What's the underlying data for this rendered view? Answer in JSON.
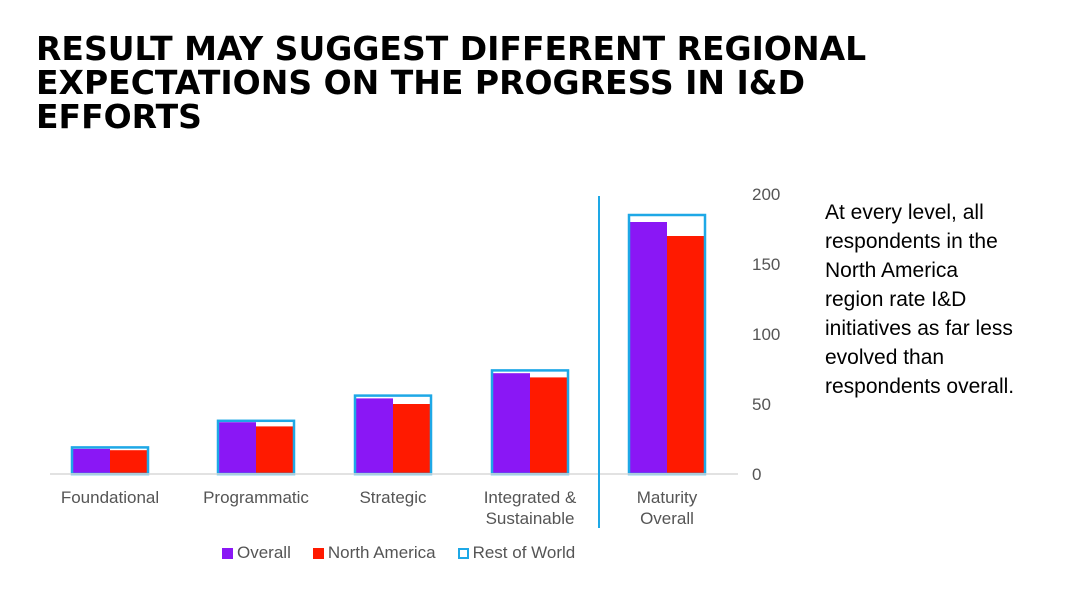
{
  "title_lines": [
    "RESULT MAY SUGGEST DIFFERENT REGIONAL",
    "EXPECTATIONS ON THE PROGRESS IN  I&D",
    "EFFORTS"
  ],
  "side_text_lines": [
    "At every level, all",
    "respondents in the",
    "North America",
    "region rate I&D",
    "initiatives as far less",
    "evolved than",
    "respondents overall."
  ],
  "colors": {
    "overall": "#8A17F5",
    "north_america": "#FF1A00",
    "rest_of_world": "#1EA8E6",
    "axis_text": "#555555",
    "axis_line": "#D9D9D9"
  },
  "chart_data": {
    "type": "bar",
    "categories": [
      [
        "Foundational"
      ],
      [
        "Programmatic"
      ],
      [
        "Strategic"
      ],
      [
        "Integrated &",
        "Sustainable"
      ],
      [
        "Maturity",
        "Overall"
      ]
    ],
    "series": [
      {
        "name": "Overall",
        "style": "filled",
        "values": [
          18,
          37,
          54,
          72,
          180
        ]
      },
      {
        "name": "North America",
        "style": "filled",
        "values": [
          17,
          34,
          50,
          69,
          170
        ]
      },
      {
        "name": "Rest of World",
        "style": "outline",
        "values": [
          19,
          38,
          56,
          74,
          185
        ]
      }
    ],
    "y_axis": {
      "position": "right",
      "min": 0,
      "max": 200,
      "ticks": [
        "0",
        "50",
        "100",
        "150",
        "200"
      ]
    },
    "separator_before_last_category": true,
    "grid": false,
    "legend_position": "bottom"
  }
}
